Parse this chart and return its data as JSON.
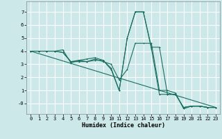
{
  "xlabel": "Humidex (Indice chaleur)",
  "background_color": "#cce8e8",
  "grid_color": "#ffffff",
  "line_color": "#1a6e60",
  "xlim": [
    -0.5,
    23.5
  ],
  "ylim": [
    -0.8,
    7.8
  ],
  "xticks": [
    0,
    1,
    2,
    3,
    4,
    5,
    6,
    7,
    8,
    9,
    10,
    11,
    12,
    13,
    14,
    15,
    16,
    17,
    18,
    19,
    20,
    21,
    22,
    23
  ],
  "yticks": [
    0,
    1,
    2,
    3,
    4,
    5,
    6,
    7
  ],
  "ytick_labels": [
    "-0",
    "1",
    "2",
    "3",
    "4",
    "5",
    "6",
    "7"
  ],
  "line1_x": [
    0,
    1,
    2,
    3,
    4,
    5,
    6,
    7,
    8,
    9,
    10,
    11,
    12,
    13,
    14,
    15,
    16,
    17,
    18,
    19,
    20,
    21,
    22,
    23
  ],
  "line1_y": [
    4.0,
    4.0,
    4.0,
    4.0,
    4.1,
    3.1,
    3.3,
    3.4,
    3.5,
    3.3,
    2.6,
    1.0,
    5.0,
    7.0,
    7.0,
    4.3,
    4.3,
    0.7,
    0.7,
    -0.3,
    -0.2,
    -0.2,
    -0.3,
    -0.3
  ],
  "line2_x": [
    0,
    1,
    2,
    3,
    4,
    5,
    6,
    7,
    8,
    9,
    10,
    11,
    12,
    13,
    14,
    15,
    16,
    17,
    18,
    19,
    20,
    21,
    22,
    23
  ],
  "line2_y": [
    4.0,
    4.0,
    4.0,
    4.0,
    3.9,
    3.2,
    3.2,
    3.2,
    3.4,
    3.2,
    3.0,
    1.8,
    2.6,
    4.6,
    4.6,
    4.6,
    1.0,
    1.0,
    0.8,
    -0.4,
    -0.2,
    -0.2,
    -0.3,
    -0.3
  ],
  "line3_x": [
    0,
    1,
    2,
    3,
    4,
    5,
    6,
    7,
    8,
    9,
    10,
    11,
    12,
    13,
    14,
    15,
    16,
    17,
    18,
    19,
    20,
    21,
    22,
    23
  ],
  "line3_y": [
    4.0,
    4.0,
    4.0,
    4.0,
    3.9,
    3.2,
    3.3,
    3.2,
    3.3,
    3.3,
    2.7,
    1.0,
    5.0,
    7.0,
    7.0,
    4.2,
    0.7,
    0.7,
    0.7,
    -0.3,
    -0.2,
    -0.2,
    -0.3,
    -0.3
  ],
  "trend_x": [
    0,
    23
  ],
  "trend_y": [
    4.0,
    -0.3
  ]
}
